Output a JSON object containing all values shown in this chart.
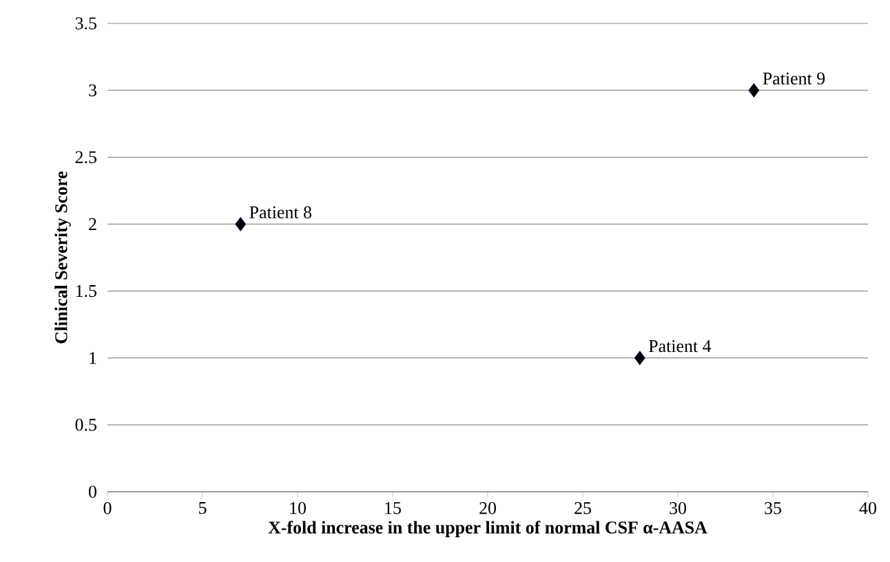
{
  "chart_data": {
    "type": "scatter",
    "xlabel": "X-fold increase in the upper limit of normal CSF α-AASA",
    "ylabel": "Clinical Severity Score",
    "x": [
      7,
      34,
      28
    ],
    "values": [
      2,
      3,
      1
    ],
    "color": "#000000",
    "marker": "diamond",
    "xlim": [
      0,
      40
    ],
    "xticks": [
      0,
      5,
      10,
      15,
      20,
      25,
      30,
      35,
      40
    ],
    "ylim": [
      0,
      3.5
    ],
    "yticks": [
      0,
      0.5,
      1,
      1.5,
      2,
      2.5,
      3,
      3.5
    ],
    "grid": "y",
    "annotations": [
      {
        "text": "Patient 8",
        "x": 7,
        "y": 2
      },
      {
        "text": "Patient 9",
        "x": 34,
        "y": 3
      },
      {
        "text": "Patient 4",
        "x": 28,
        "y": 1
      }
    ]
  }
}
